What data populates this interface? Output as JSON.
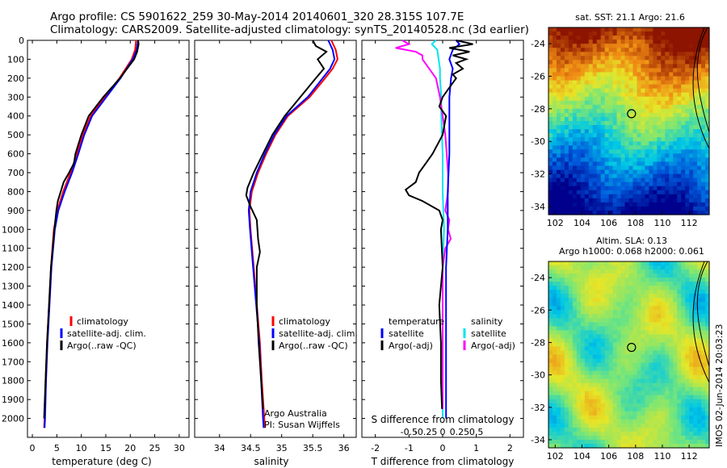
{
  "header": {
    "line1": "Argo profile: CS 5901622_259 30-May-2014 20140601_320 28.315S 107.7E",
    "line2": "Climatology: CARS2009. Satellite-adjusted climatology: synTS_20140528.nc (3d earlier)"
  },
  "colors": {
    "climatology": "#ff0000",
    "satellite": "#0000ff",
    "argo": "#000000",
    "salinity_satellite": "#00e5ee",
    "salinity_argo": "#ff00ff"
  },
  "chart_data": [
    {
      "type": "line",
      "id": "temperature",
      "xlabel": "temperature (deg C)",
      "ylabel": "",
      "xlim": [
        -1,
        32
      ],
      "ylim": [
        0,
        2100
      ],
      "xticks": [
        0,
        5,
        10,
        15,
        20,
        25,
        30
      ],
      "yticks": [
        0,
        100,
        200,
        300,
        400,
        500,
        600,
        700,
        800,
        900,
        1000,
        1100,
        1200,
        1300,
        1400,
        1500,
        1600,
        1700,
        1800,
        1900,
        2000
      ],
      "legend": [
        "climatology",
        "satellite-adj. clim.",
        "Argo(..raw -QC)"
      ],
      "series": [
        {
          "name": "climatology",
          "color": "#ff0000",
          "depth": [
            0,
            50,
            100,
            200,
            300,
            400,
            500,
            600,
            700,
            800,
            900,
            1000,
            1200,
            1400,
            1600,
            1800,
            2000,
            2050
          ],
          "values": [
            21.2,
            21.0,
            20.3,
            17.8,
            14.8,
            11.9,
            10.3,
            9.1,
            7.8,
            6.3,
            5.1,
            4.4,
            3.8,
            3.4,
            3.0,
            2.7,
            2.5,
            2.4
          ]
        },
        {
          "name": "satellite-adj. clim.",
          "color": "#0000ff",
          "depth": [
            0,
            50,
            100,
            200,
            300,
            400,
            500,
            600,
            700,
            800,
            900,
            1000,
            1200,
            1400,
            1600,
            1800,
            2000,
            2050
          ],
          "values": [
            21.6,
            21.3,
            20.5,
            18.0,
            15.1,
            12.2,
            10.6,
            9.4,
            8.1,
            6.6,
            5.3,
            4.6,
            3.9,
            3.5,
            3.1,
            2.8,
            2.6,
            2.5
          ]
        },
        {
          "name": "Argo(..raw -QC)",
          "color": "#000000",
          "depth": [
            0,
            20,
            60,
            100,
            200,
            300,
            400,
            500,
            600,
            650,
            700,
            750,
            800,
            850,
            900,
            1000,
            1200,
            1400,
            1600,
            1800,
            2000
          ],
          "values": [
            21.6,
            21.7,
            21.4,
            20.8,
            17.9,
            14.5,
            11.5,
            10.0,
            8.8,
            8.5,
            7.5,
            6.4,
            5.8,
            5.2,
            4.9,
            4.5,
            3.8,
            3.4,
            3.0,
            2.7,
            2.4
          ]
        }
      ]
    },
    {
      "type": "line",
      "id": "salinity",
      "xlabel": "salinity",
      "xlim": [
        33.6,
        36.2
      ],
      "ylim": [
        0,
        2100
      ],
      "xticks": [
        34,
        34.5,
        35,
        35.5,
        36
      ],
      "legend": [
        "climatology",
        "satellite-adj. clim.",
        "Argo(..raw -QC)"
      ],
      "annotation": [
        "Argo Australia",
        "PI: Susan Wijffels"
      ],
      "series": [
        {
          "name": "climatology",
          "color": "#ff0000",
          "depth": [
            0,
            50,
            100,
            150,
            200,
            300,
            400,
            500,
            600,
            700,
            800,
            900,
            1000,
            1200,
            1400,
            1600,
            1800,
            2000,
            2050
          ],
          "values": [
            35.8,
            35.87,
            35.9,
            35.82,
            35.7,
            35.45,
            35.1,
            34.9,
            34.75,
            34.62,
            34.52,
            34.48,
            34.5,
            34.55,
            34.6,
            34.65,
            34.68,
            34.72,
            34.73
          ]
        },
        {
          "name": "satellite-adj. clim.",
          "color": "#0000ff",
          "depth": [
            0,
            50,
            100,
            150,
            200,
            300,
            400,
            500,
            600,
            700,
            800,
            900,
            1000,
            1200,
            1400,
            1600,
            1800,
            2000,
            2050
          ],
          "values": [
            35.75,
            35.82,
            35.85,
            35.78,
            35.66,
            35.42,
            35.08,
            34.88,
            34.73,
            34.6,
            34.5,
            34.47,
            34.49,
            34.54,
            34.59,
            34.64,
            34.67,
            34.7,
            34.71
          ]
        },
        {
          "name": "Argo(..raw -QC)",
          "color": "#000000",
          "depth": [
            0,
            30,
            60,
            100,
            150,
            200,
            300,
            400,
            500,
            600,
            700,
            780,
            820,
            880,
            950,
            1050,
            1120,
            1200,
            1400,
            1600,
            1800,
            1950
          ],
          "values": [
            35.5,
            35.55,
            35.72,
            35.58,
            35.68,
            35.55,
            35.3,
            35.05,
            34.85,
            34.7,
            34.55,
            34.45,
            34.43,
            34.5,
            34.6,
            34.62,
            34.65,
            34.6,
            34.6,
            34.63,
            34.67,
            34.7
          ]
        }
      ]
    },
    {
      "type": "line",
      "id": "differences",
      "xlabel": "T difference from climatology",
      "xlabel2": "S difference from climatology",
      "xlim": [
        -2.4,
        2.4
      ],
      "ylim": [
        0,
        2100
      ],
      "xticks": [
        -2,
        -1,
        0,
        1,
        2
      ],
      "xticks2": [
        "-0.5",
        "-0.25",
        "0",
        "0.25",
        "0.5"
      ],
      "legend_headers": [
        "temperature",
        "salinity"
      ],
      "legend": [
        "satellite",
        "Argo(-adj)",
        "satellite",
        "Argo(-adj)"
      ],
      "series": [
        {
          "name": "T satellite",
          "color": "#0000ff",
          "depth": [
            0,
            20,
            50,
            100,
            150,
            200,
            300,
            400,
            500,
            600,
            800,
            1000,
            1200,
            1400,
            1600,
            1800,
            2000
          ],
          "values": [
            0.4,
            0.5,
            0.3,
            0.2,
            0.3,
            0.25,
            0.2,
            0.2,
            0.2,
            0.2,
            0.15,
            0.15,
            0.1,
            0.1,
            0.1,
            0.1,
            0.1
          ]
        },
        {
          "name": "T Argo(-adj)",
          "color": "#000000",
          "depth": [
            0,
            20,
            40,
            60,
            80,
            100,
            120,
            150,
            180,
            200,
            250,
            300,
            350,
            400,
            500,
            600,
            650,
            700,
            750,
            790,
            820,
            850,
            900,
            950,
            1000,
            1200,
            1400,
            1600,
            1800,
            1950
          ],
          "values": [
            0.4,
            0.9,
            0.2,
            0.8,
            0.3,
            0.7,
            0.4,
            0.6,
            0.3,
            0.4,
            0.2,
            0.0,
            -0.1,
            0.1,
            0.0,
            -0.3,
            -0.5,
            -0.7,
            -0.8,
            -1.1,
            -1.0,
            -0.6,
            -0.1,
            0.0,
            -0.05,
            0.0,
            -0.1,
            -0.05,
            -0.05,
            -0.02
          ]
        },
        {
          "name": "S satellite",
          "color": "#00e5ee",
          "depth": [
            0,
            20,
            50,
            100,
            150,
            200,
            300,
            400,
            600,
            800,
            1000,
            1200,
            1400,
            1600,
            1800,
            2000
          ],
          "values": [
            -0.05,
            -0.08,
            -0.04,
            -0.03,
            -0.02,
            -0.02,
            -0.01,
            -0.01,
            0.0,
            0.0,
            0.01,
            0.0,
            0.0,
            0.0,
            0.0,
            0.0
          ]
        },
        {
          "name": "S Argo(-adj)",
          "color": "#ff00ff",
          "depth": [
            0,
            20,
            40,
            60,
            80,
            100,
            150,
            200,
            300,
            400,
            500,
            600,
            700,
            800,
            850,
            900,
            950,
            1000,
            1050,
            1100,
            1200,
            1400,
            1600,
            1800,
            1950
          ],
          "values": [
            -0.3,
            -0.25,
            -0.35,
            -0.2,
            -0.15,
            -0.15,
            -0.1,
            -0.05,
            -0.02,
            0.0,
            0.02,
            0.03,
            0.04,
            0.04,
            0.03,
            0.02,
            0.05,
            0.04,
            0.06,
            0.02,
            0.0,
            0.0,
            0.0,
            0.0,
            0.0
          ]
        }
      ]
    }
  ],
  "maps": {
    "sst": {
      "title": "sat. SST: 21.1  Argo: 21.6",
      "yticks": [
        "-24",
        "-26",
        "-28",
        "-30",
        "-32",
        "-34"
      ],
      "xticks": [
        "102",
        "104",
        "106",
        "108",
        "110",
        "112"
      ]
    },
    "sla": {
      "title1": "Altim. SLA: 0.13",
      "title2": "Argo h1000: 0.068 h2000: 0.061",
      "yticks": [
        "-24",
        "-26",
        "-28",
        "-30",
        "-32",
        "-34"
      ],
      "xticks": [
        "102",
        "104",
        "106",
        "108",
        "110",
        "112"
      ]
    },
    "float_position": {
      "lon": 107.7,
      "lat": -28.3
    }
  },
  "footer": {
    "stamp": "IMOS 02-Jun-2014 20:03:23"
  }
}
